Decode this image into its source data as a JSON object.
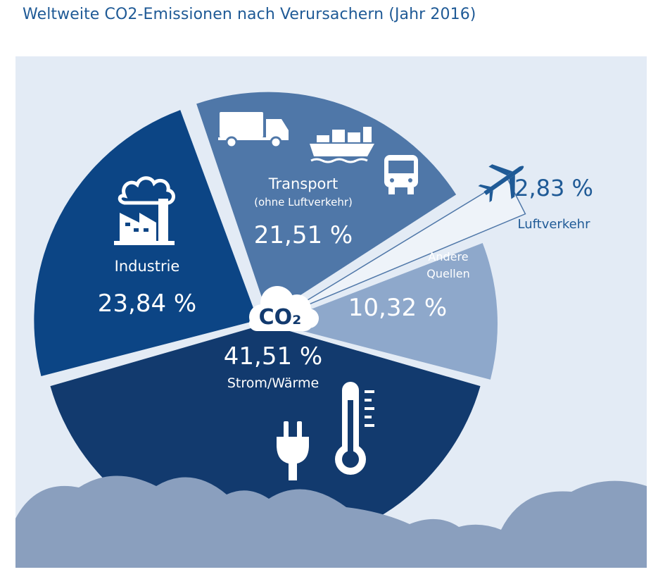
{
  "title": "Weltweite CO2-Emissionen nach Verursachern (Jahr 2016)",
  "center_label": "CO₂",
  "colors": {
    "title": "#1f5a96",
    "background": "#e3ebf5",
    "strom": "#123a6e",
    "industrie": "#0c4585",
    "transport": "#4f77a8",
    "luftverkehr": "#eef3f9",
    "andere": "#8ea8cb"
  },
  "icons": {
    "industrie": "factory-icon",
    "transport": [
      "truck-icon",
      "ship-icon",
      "bus-icon"
    ],
    "luftverkehr": "airplane-icon",
    "strom": [
      "plug-icon",
      "thermometer-icon"
    ],
    "center": "cloud-icon"
  },
  "chart_data": {
    "type": "pie",
    "title": "Weltweite CO2-Emissionen nach Verursachern (Jahr 2016)",
    "legend": "none",
    "slices": [
      {
        "key": "strom",
        "label": "Strom/Wärme",
        "value": 41.51,
        "value_label": "41,51 %",
        "exploded": false
      },
      {
        "key": "industrie",
        "label": "Industrie",
        "value": 23.84,
        "value_label": "23,84 %",
        "exploded": true
      },
      {
        "key": "transport",
        "label": "Transport",
        "sublabel": "(ohne Luftverkehr)",
        "value": 21.51,
        "value_label": "21,51 %",
        "exploded": true
      },
      {
        "key": "luftverkehr",
        "label": "Luftverkehr",
        "value": 2.83,
        "value_label": "2,83 %",
        "exploded": true
      },
      {
        "key": "andere",
        "label": "Andere",
        "label2": "Quellen",
        "value": 10.32,
        "value_label": "10,32 %",
        "exploded": true
      }
    ]
  }
}
